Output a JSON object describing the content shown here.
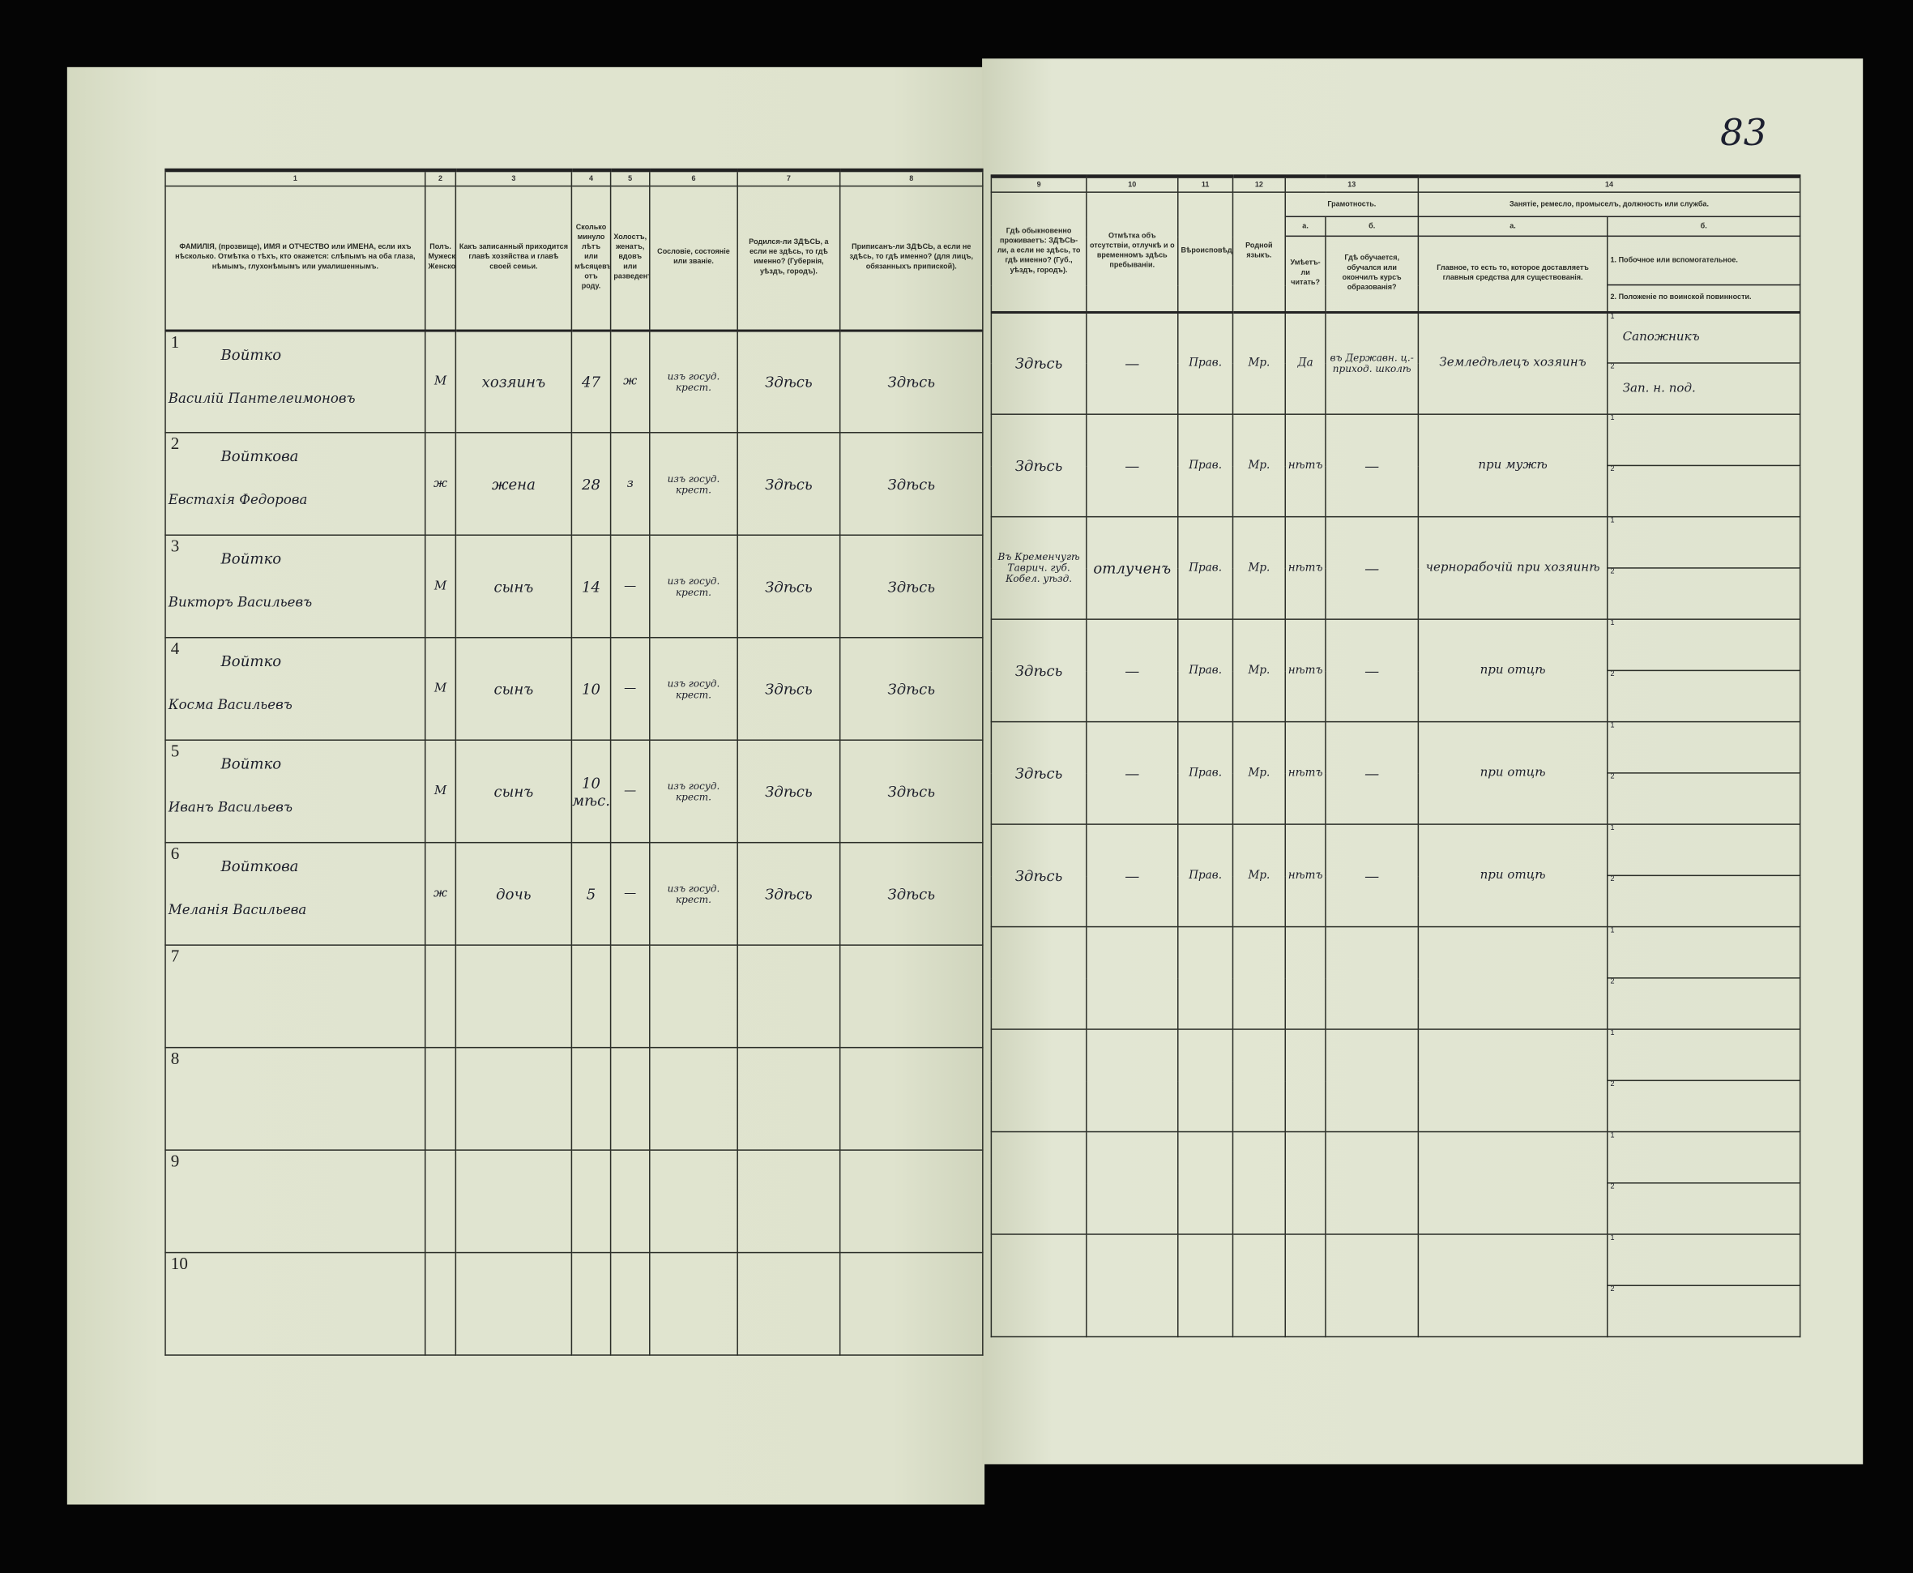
{
  "page_number": "83",
  "left_headers": {
    "numbers": [
      "1",
      "2",
      "3",
      "4",
      "5",
      "6",
      "7",
      "8"
    ],
    "labels": [
      "ФАМИЛІЯ, (прозвище), ИМЯ и ОТЧЕСТВО или ИМЕНА, если ихъ нѣсколько. Отмѣтка о тѣхъ, кто окажется: слѣпымъ на оба глаза, нѣмымъ, глухонѣмымъ или умалишеннымъ.",
      "Полъ. Мужеской. Женской.",
      "Какъ записанный приходится главѣ хозяйства и главѣ своей семьи.",
      "Сколько минуло лѣтъ или мѣсяцевъ отъ роду.",
      "Холостъ, женатъ, вдовъ или разведенъ.",
      "Сословіе, состояніе или званіе.",
      "Родился-ли ЗДѢСЬ, а если не здѣсь, то гдѣ именно? (Губернія, уѣздъ, городъ).",
      "Приписанъ-ли ЗДѢСЬ, а если не здѣсь, то гдѣ именно? (для лицъ, обязанныхъ припиской)."
    ]
  },
  "right_headers": {
    "numbers": [
      "9",
      "10",
      "11",
      "12",
      "13",
      "14"
    ],
    "col9": "Гдѣ обыкновенно проживаетъ: ЗДѢСЬ-ли, а если не здѣсь, то гдѣ именно? (Губ., уѣздъ, городъ).",
    "col10": "Отмѣтка объ отсутствіи, отлучкѣ и о временномъ здѣсь пребываніи.",
    "col11": "Вѣроисповѣданіе.",
    "col12": "Родной языкъ.",
    "col13": "Грамотность.",
    "col13a_letter": "а.",
    "col13b_letter": "б.",
    "col13a": "Умѣетъ-ли читать?",
    "col13b": "Гдѣ обучается, обучался или окончилъ курсъ образованія?",
    "col14": "Занятіе, ремесло, промыселъ, должность или служба.",
    "col14a_letter": "а.",
    "col14b_letter": "б.",
    "col14a": "Главное, то есть то, которое доставляетъ главныя средства для существованія.",
    "col14b1": "1. Побочное или вспомогательное.",
    "col14b2": "2. Положеніе по воинской повинности."
  },
  "rows": [
    {
      "n": "1",
      "surname": "Войтко",
      "name": "Василій Пантелеимоновъ",
      "sex": "М",
      "relation": "хозяинъ",
      "age": "47",
      "marital": "ж",
      "estate": "изъ госуд. крест.",
      "born": "Здѣсь",
      "registered": "Здѣсь",
      "residence": "Здѣсь",
      "absence": "—",
      "religion": "Прав.",
      "language": "Мр.",
      "literate": "Да",
      "education": "въ Державн. ц.-приход. школѣ",
      "occ_main": "Земледѣлецъ хозяинъ",
      "occ_side": "Сапожникъ",
      "military": "Зап. н. под."
    },
    {
      "n": "2",
      "surname": "Войткова",
      "name": "Евстахія Федорова",
      "sex": "ж",
      "relation": "жена",
      "age": "28",
      "marital": "з",
      "estate": "изъ госуд. крест.",
      "born": "Здѣсь",
      "registered": "Здѣсь",
      "residence": "Здѣсь",
      "absence": "—",
      "religion": "Прав.",
      "language": "Мр.",
      "literate": "нѣтъ",
      "education": "—",
      "occ_main": "при мужѣ",
      "occ_side": "",
      "military": ""
    },
    {
      "n": "3",
      "surname": "Войтко",
      "name": "Викторъ Васильевъ",
      "sex": "М",
      "relation": "сынъ",
      "age": "14",
      "marital": "—",
      "estate": "изъ госуд. крест.",
      "born": "Здѣсь",
      "registered": "Здѣсь",
      "residence": "Въ Кременчугѣ Таврич. губ. Кобел. уѣзд.",
      "absence": "отлученъ",
      "religion": "Прав.",
      "language": "Мр.",
      "literate": "нѣтъ",
      "education": "—",
      "occ_main": "чернорабочій при хозяинѣ",
      "occ_side": "",
      "military": ""
    },
    {
      "n": "4",
      "surname": "Войтко",
      "name": "Косма Васильевъ",
      "sex": "М",
      "relation": "сынъ",
      "age": "10",
      "marital": "—",
      "estate": "изъ госуд. крест.",
      "born": "Здѣсь",
      "registered": "Здѣсь",
      "residence": "Здѣсь",
      "absence": "—",
      "religion": "Прав.",
      "language": "Мр.",
      "literate": "нѣтъ",
      "education": "—",
      "occ_main": "при отцѣ",
      "occ_side": "",
      "military": ""
    },
    {
      "n": "5",
      "surname": "Войтко",
      "name": "Иванъ Васильевъ",
      "sex": "М",
      "relation": "сынъ",
      "age": "10 мѣс.",
      "marital": "—",
      "estate": "изъ госуд. крест.",
      "born": "Здѣсь",
      "registered": "Здѣсь",
      "residence": "Здѣсь",
      "absence": "—",
      "religion": "Прав.",
      "language": "Мр.",
      "literate": "нѣтъ",
      "education": "—",
      "occ_main": "при отцѣ",
      "occ_side": "",
      "military": ""
    },
    {
      "n": "6",
      "surname": "Войткова",
      "name": "Меланія Васильева",
      "sex": "ж",
      "relation": "дочь",
      "age": "5",
      "marital": "—",
      "estate": "изъ госуд. крест.",
      "born": "Здѣсь",
      "registered": "Здѣсь",
      "residence": "Здѣсь",
      "absence": "—",
      "religion": "Прав.",
      "language": "Мр.",
      "literate": "нѣтъ",
      "education": "—",
      "occ_main": "при отцѣ",
      "occ_side": "",
      "military": ""
    },
    {
      "n": "7"
    },
    {
      "n": "8"
    },
    {
      "n": "9"
    },
    {
      "n": "10"
    }
  ],
  "sub_labels": [
    "1",
    "2"
  ],
  "colors": {
    "paper": "#dde2cc",
    "ink": "#1c1e2a",
    "background": "#050505"
  }
}
